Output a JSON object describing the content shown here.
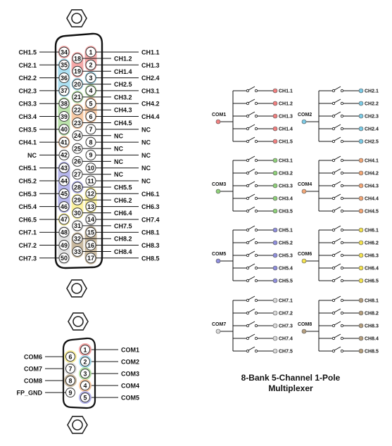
{
  "caption": {
    "line1": "8-Bank 5-Channel 1-Pole",
    "line2": "Multiplexer"
  },
  "colors": {
    "ch1": "#f4a3a3",
    "ch2": "#a9dff2",
    "ch3": "#b7e2a6",
    "ch4": "#f8c7a0",
    "ch5": "#b3b3ec",
    "ch6": "#fbf09a",
    "ch7": "#e2e2e2",
    "ch8": "#c6b59a",
    "com1": "#f08080",
    "com2": "#7ccbe6",
    "com3": "#8fd07a",
    "com4": "#f2a777",
    "com5": "#8f8fdc",
    "com6": "#f4e24f",
    "com7": "#d8d8d8",
    "com8": "#b59f7f"
  },
  "connector50": {
    "left_col": [
      {
        "pin": "34",
        "label": "CH1.5",
        "color": "ch1"
      },
      {
        "pin": "35",
        "label": "CH2.1",
        "color": "ch2"
      },
      {
        "pin": "36",
        "label": "CH2.2",
        "color": "ch2"
      },
      {
        "pin": "37",
        "label": "CH2.3",
        "color": "ch2"
      },
      {
        "pin": "38",
        "label": "CH3.3",
        "color": "ch3"
      },
      {
        "pin": "39",
        "label": "CH3.4",
        "color": "ch3"
      },
      {
        "pin": "40",
        "label": "CH3.5",
        "color": "ch3"
      },
      {
        "pin": "41",
        "label": "CH4.1",
        "color": "ch4"
      },
      {
        "pin": "42",
        "label": "NC",
        "color": ""
      },
      {
        "pin": "43",
        "label": "CH5.1",
        "color": "ch5"
      },
      {
        "pin": "44",
        "label": "CH5.2",
        "color": "ch5"
      },
      {
        "pin": "45",
        "label": "CH5.3",
        "color": "ch5"
      },
      {
        "pin": "46",
        "label": "CH5.4",
        "color": "ch5"
      },
      {
        "pin": "47",
        "label": "CH6.5",
        "color": "ch6"
      },
      {
        "pin": "48",
        "label": "CH7.1",
        "color": "ch7"
      },
      {
        "pin": "49",
        "label": "CH7.2",
        "color": "ch7"
      },
      {
        "pin": "50",
        "label": "CH7.3",
        "color": "ch7"
      }
    ],
    "middle_col": [
      {
        "pin": "18",
        "label": "CH1.2",
        "color": "ch1"
      },
      {
        "pin": "19",
        "label": "CH1.4",
        "color": "ch1"
      },
      {
        "pin": "20",
        "label": "CH2.5",
        "color": "ch2"
      },
      {
        "pin": "21",
        "label": "CH3.2",
        "color": "ch3"
      },
      {
        "pin": "22",
        "label": "CH4.3",
        "color": "ch4"
      },
      {
        "pin": "23",
        "label": "CH4.5",
        "color": "ch4"
      },
      {
        "pin": "24",
        "label": "NC",
        "color": ""
      },
      {
        "pin": "25",
        "label": "NC",
        "color": ""
      },
      {
        "pin": "26",
        "label": "NC",
        "color": ""
      },
      {
        "pin": "27",
        "label": "NC",
        "color": ""
      },
      {
        "pin": "28",
        "label": "CH5.5",
        "color": "ch5"
      },
      {
        "pin": "29",
        "label": "CH6.2",
        "color": "ch6"
      },
      {
        "pin": "30",
        "label": "CH6.4",
        "color": "ch6"
      },
      {
        "pin": "31",
        "label": "CH7.5",
        "color": "ch7"
      },
      {
        "pin": "32",
        "label": "CH8.2",
        "color": "ch8"
      },
      {
        "pin": "33",
        "label": "CH8.4",
        "color": "ch8"
      }
    ],
    "right_col": [
      {
        "pin": "1",
        "label": "CH1.1",
        "color": "ch1"
      },
      {
        "pin": "2",
        "label": "CH1.3",
        "color": "ch1"
      },
      {
        "pin": "3",
        "label": "CH2.4",
        "color": "ch2"
      },
      {
        "pin": "4",
        "label": "CH3.1",
        "color": "ch3"
      },
      {
        "pin": "5",
        "label": "CH4.2",
        "color": "ch4"
      },
      {
        "pin": "6",
        "label": "CH4.4",
        "color": "ch4"
      },
      {
        "pin": "7",
        "label": "NC",
        "color": ""
      },
      {
        "pin": "8",
        "label": "NC",
        "color": ""
      },
      {
        "pin": "9",
        "label": "NC",
        "color": ""
      },
      {
        "pin": "10",
        "label": "NC",
        "color": ""
      },
      {
        "pin": "11",
        "label": "NC",
        "color": ""
      },
      {
        "pin": "12",
        "label": "CH6.1",
        "color": "ch6"
      },
      {
        "pin": "13",
        "label": "CH6.3",
        "color": "ch6"
      },
      {
        "pin": "14",
        "label": "CH7.4",
        "color": "ch7"
      },
      {
        "pin": "15",
        "label": "CH8.1",
        "color": "ch8"
      },
      {
        "pin": "16",
        "label": "CH8.3",
        "color": "ch8"
      },
      {
        "pin": "17",
        "label": "CH8.5",
        "color": "ch8"
      }
    ]
  },
  "connector9": {
    "left_col": [
      {
        "pin": "6",
        "label": "COM6",
        "color": "ch6"
      },
      {
        "pin": "7",
        "label": "COM7",
        "color": "ch7"
      },
      {
        "pin": "8",
        "label": "COM8",
        "color": "ch8"
      },
      {
        "pin": "9",
        "label": "FP_GND",
        "color": ""
      }
    ],
    "right_col": [
      {
        "pin": "1",
        "label": "COM1",
        "color": "ch1"
      },
      {
        "pin": "2",
        "label": "COM2",
        "color": "ch2"
      },
      {
        "pin": "3",
        "label": "COM3",
        "color": "ch3"
      },
      {
        "pin": "4",
        "label": "COM4",
        "color": "ch4"
      },
      {
        "pin": "5",
        "label": "COM5",
        "color": "ch5"
      }
    ]
  },
  "banks": [
    {
      "com": "COM1",
      "color": "com1",
      "channels": [
        "CH1.1",
        "CH1.2",
        "CH1.3",
        "CH1.4",
        "CH1.5"
      ]
    },
    {
      "com": "COM2",
      "color": "com2",
      "channels": [
        "CH2.1",
        "CH2.2",
        "CH2.3",
        "CH2.4",
        "CH2.5"
      ]
    },
    {
      "com": "COM3",
      "color": "com3",
      "channels": [
        "CH3.1",
        "CH3.2",
        "CH3.3",
        "CH3.4",
        "CH3.5"
      ]
    },
    {
      "com": "COM4",
      "color": "com4",
      "channels": [
        "CH4.1",
        "CH4.2",
        "CH4.3",
        "CH4.4",
        "CH4.5"
      ]
    },
    {
      "com": "COM5",
      "color": "com5",
      "channels": [
        "CH5.1",
        "CH5.2",
        "CH5.3",
        "CH5.4",
        "CH5.5"
      ]
    },
    {
      "com": "COM6",
      "color": "com6",
      "channels": [
        "CH6.1",
        "CH6.2",
        "CH6.3",
        "CH6.4",
        "CH6.5"
      ]
    },
    {
      "com": "COM7",
      "color": "com7",
      "channels": [
        "CH7.1",
        "CH7.2",
        "CH7.3",
        "CH7.4",
        "CH7.5"
      ]
    },
    {
      "com": "COM8",
      "color": "com8",
      "channels": [
        "CH8.1",
        "CH8.2",
        "CH8.3",
        "CH8.4",
        "CH8.5"
      ]
    }
  ]
}
